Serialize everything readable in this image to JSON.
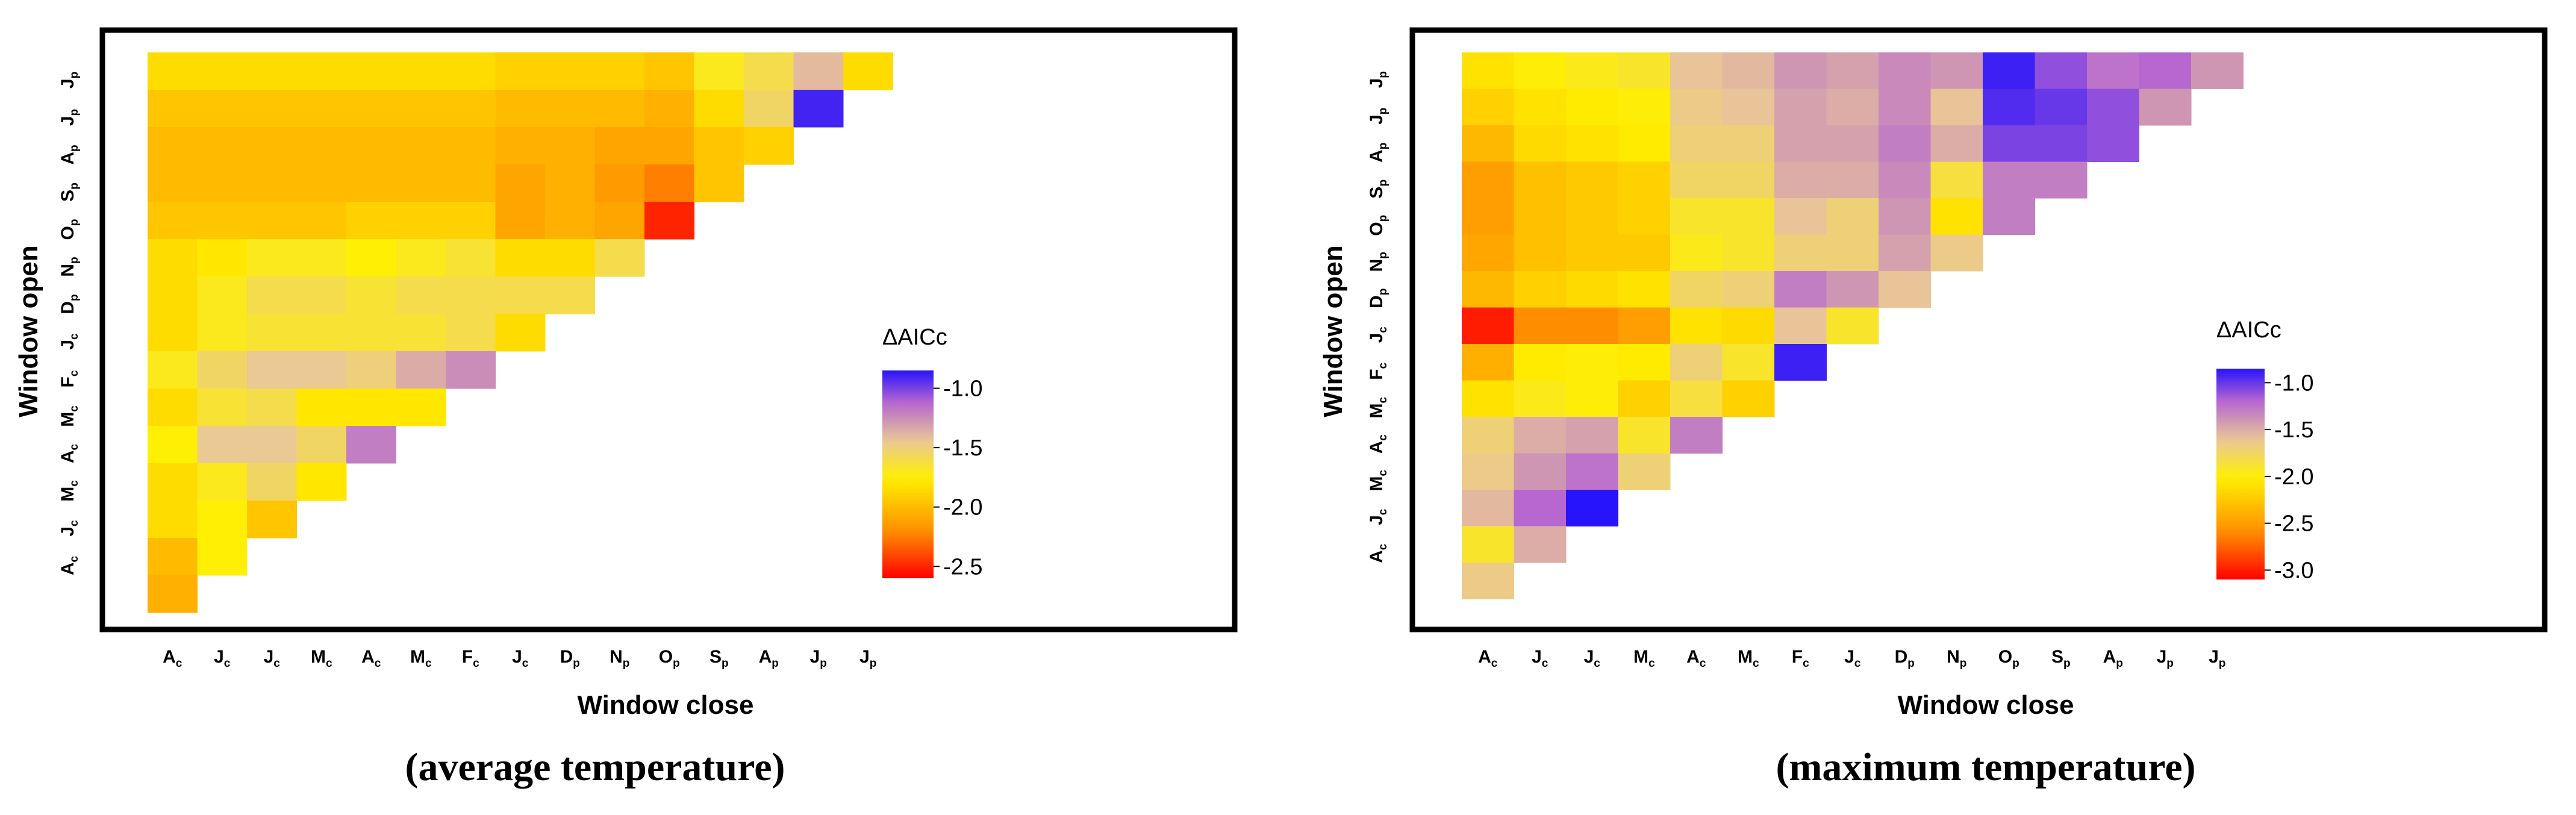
{
  "chart_data": [
    {
      "type": "heatmap",
      "caption": "(average temperature)",
      "xlabel": "Window close",
      "ylabel": "Window open",
      "x_categories": [
        {
          "main": "A",
          "sub": "c"
        },
        {
          "main": "J",
          "sub": "c"
        },
        {
          "main": "J",
          "sub": "c"
        },
        {
          "main": "M",
          "sub": "c"
        },
        {
          "main": "A",
          "sub": "c"
        },
        {
          "main": "M",
          "sub": "c"
        },
        {
          "main": "F",
          "sub": "c"
        },
        {
          "main": "J",
          "sub": "c"
        },
        {
          "main": "D",
          "sub": "p"
        },
        {
          "main": "N",
          "sub": "p"
        },
        {
          "main": "O",
          "sub": "p"
        },
        {
          "main": "S",
          "sub": "p"
        },
        {
          "main": "A",
          "sub": "p"
        },
        {
          "main": "J",
          "sub": "p"
        },
        {
          "main": "J",
          "sub": "p"
        }
      ],
      "y_categories": [
        {
          "main": "J",
          "sub": "p"
        },
        {
          "main": "J",
          "sub": "p"
        },
        {
          "main": "A",
          "sub": "p"
        },
        {
          "main": "S",
          "sub": "p"
        },
        {
          "main": "O",
          "sub": "p"
        },
        {
          "main": "N",
          "sub": "p"
        },
        {
          "main": "D",
          "sub": "p"
        },
        {
          "main": "J",
          "sub": "c"
        },
        {
          "main": "F",
          "sub": "c"
        },
        {
          "main": "M",
          "sub": "c"
        },
        {
          "main": "A",
          "sub": "c"
        },
        {
          "main": "M",
          "sub": "c"
        },
        {
          "main": "J",
          "sub": "c"
        },
        {
          "main": "A",
          "sub": "c"
        }
      ],
      "legend": {
        "title": "ΔAICc",
        "min": -2.6,
        "max": -0.85,
        "ticks": [
          -1.0,
          -1.5,
          -2.0,
          -2.5
        ],
        "tick_labels": [
          "-1.0",
          "-1.5",
          "-2.0",
          "-2.5"
        ]
      },
      "values": [
        [
          -1.85,
          -1.85,
          -1.85,
          -1.85,
          -1.85,
          -1.85,
          -1.85,
          -1.9,
          -1.9,
          -1.9,
          -1.95,
          -1.7,
          -1.6,
          -1.4,
          -1.85
        ],
        [
          -1.95,
          -1.95,
          -1.95,
          -1.95,
          -1.95,
          -1.95,
          -1.95,
          -2.0,
          -2.0,
          -2.0,
          -2.05,
          -1.85,
          -1.55,
          -0.9
        ],
        [
          -2.0,
          -2.0,
          -2.0,
          -2.0,
          -2.0,
          -2.0,
          -2.0,
          -2.05,
          -2.05,
          -2.1,
          -2.1,
          -1.95,
          -1.9
        ],
        [
          -2.0,
          -2.0,
          -2.0,
          -2.0,
          -2.0,
          -2.0,
          -2.0,
          -2.1,
          -2.05,
          -2.15,
          -2.25,
          -1.95
        ],
        [
          -1.95,
          -1.95,
          -1.95,
          -1.95,
          -1.9,
          -1.9,
          -1.9,
          -2.1,
          -2.05,
          -2.1,
          -2.5
        ],
        [
          -1.85,
          -1.8,
          -1.7,
          -1.7,
          -1.75,
          -1.7,
          -1.65,
          -1.85,
          -1.85,
          -1.6
        ],
        [
          -1.85,
          -1.7,
          -1.6,
          -1.6,
          -1.65,
          -1.6,
          -1.6,
          -1.6,
          -1.6
        ],
        [
          -1.85,
          -1.7,
          -1.65,
          -1.65,
          -1.65,
          -1.65,
          -1.6,
          -1.85
        ],
        [
          -1.7,
          -1.55,
          -1.45,
          -1.45,
          -1.5,
          -1.35,
          -1.25
        ],
        [
          -1.85,
          -1.65,
          -1.6,
          -1.8,
          -1.8,
          -1.8
        ],
        [
          -1.75,
          -1.45,
          -1.45,
          -1.55,
          -1.2
        ],
        [
          -1.85,
          -1.7,
          -1.55,
          -1.8
        ],
        [
          -1.85,
          -1.75,
          -1.95
        ],
        [
          -2.0,
          -1.75
        ],
        [
          -2.05
        ]
      ]
    },
    {
      "type": "heatmap",
      "caption": "(maximum temperature)",
      "xlabel": "Window close",
      "ylabel": "Window open",
      "x_categories": [
        {
          "main": "A",
          "sub": "c"
        },
        {
          "main": "J",
          "sub": "c"
        },
        {
          "main": "J",
          "sub": "c"
        },
        {
          "main": "M",
          "sub": "c"
        },
        {
          "main": "A",
          "sub": "c"
        },
        {
          "main": "M",
          "sub": "c"
        },
        {
          "main": "F",
          "sub": "c"
        },
        {
          "main": "J",
          "sub": "c"
        },
        {
          "main": "D",
          "sub": "p"
        },
        {
          "main": "N",
          "sub": "p"
        },
        {
          "main": "O",
          "sub": "p"
        },
        {
          "main": "S",
          "sub": "p"
        },
        {
          "main": "A",
          "sub": "p"
        },
        {
          "main": "J",
          "sub": "p"
        },
        {
          "main": "J",
          "sub": "p"
        }
      ],
      "y_categories": [
        {
          "main": "J",
          "sub": "p"
        },
        {
          "main": "J",
          "sub": "p"
        },
        {
          "main": "A",
          "sub": "p"
        },
        {
          "main": "S",
          "sub": "p"
        },
        {
          "main": "O",
          "sub": "p"
        },
        {
          "main": "N",
          "sub": "p"
        },
        {
          "main": "D",
          "sub": "p"
        },
        {
          "main": "J",
          "sub": "c"
        },
        {
          "main": "F",
          "sub": "c"
        },
        {
          "main": "M",
          "sub": "c"
        },
        {
          "main": "A",
          "sub": "c"
        },
        {
          "main": "M",
          "sub": "c"
        },
        {
          "main": "J",
          "sub": "c"
        },
        {
          "main": "A",
          "sub": "c"
        }
      ],
      "legend": {
        "title": "ΔAICc",
        "min": -3.1,
        "max": -0.85,
        "ticks": [
          -1.0,
          -1.5,
          -2.0,
          -2.5,
          -3.0
        ],
        "tick_labels": [
          "-1.0",
          "-1.5",
          "-2.0",
          "-2.5",
          "-3.0"
        ]
      },
      "values": [
        [
          -2.1,
          -2.0,
          -1.95,
          -1.9,
          -1.6,
          -1.55,
          -1.4,
          -1.45,
          -1.35,
          -1.4,
          -0.9,
          -1.1,
          -1.25,
          -1.2,
          -1.4
        ],
        [
          -2.2,
          -2.1,
          -2.05,
          -2.0,
          -1.65,
          -1.6,
          -1.45,
          -1.5,
          -1.35,
          -1.6,
          -0.95,
          -1.0,
          -1.1,
          -1.4
        ],
        [
          -2.35,
          -2.15,
          -2.1,
          -2.05,
          -1.7,
          -1.7,
          -1.45,
          -1.45,
          -1.3,
          -1.5,
          -1.05,
          -1.05,
          -1.1
        ],
        [
          -2.5,
          -2.3,
          -2.25,
          -2.2,
          -1.75,
          -1.75,
          -1.5,
          -1.5,
          -1.35,
          -1.85,
          -1.3,
          -1.3
        ],
        [
          -2.5,
          -2.3,
          -2.25,
          -2.2,
          -1.9,
          -1.9,
          -1.6,
          -1.7,
          -1.4,
          -2.1,
          -1.3
        ],
        [
          -2.45,
          -2.3,
          -2.25,
          -2.25,
          -1.95,
          -1.9,
          -1.7,
          -1.7,
          -1.45,
          -1.65
        ],
        [
          -2.35,
          -2.2,
          -2.15,
          -2.1,
          -1.75,
          -1.7,
          -1.3,
          -1.4,
          -1.6
        ],
        [
          -3.0,
          -2.6,
          -2.6,
          -2.5,
          -2.1,
          -2.15,
          -1.6,
          -1.9
        ],
        [
          -2.4,
          -2.05,
          -2.0,
          -2.05,
          -1.7,
          -1.9,
          -0.9
        ],
        [
          -2.1,
          -1.95,
          -2.0,
          -2.2,
          -1.85,
          -2.2
        ],
        [
          -1.7,
          -1.5,
          -1.45,
          -1.9,
          -1.3
        ],
        [
          -1.65,
          -1.4,
          -1.25,
          -1.7
        ],
        [
          -1.55,
          -1.2,
          -0.85
        ],
        [
          -1.9,
          -1.5
        ],
        [
          -1.65
        ]
      ]
    }
  ]
}
